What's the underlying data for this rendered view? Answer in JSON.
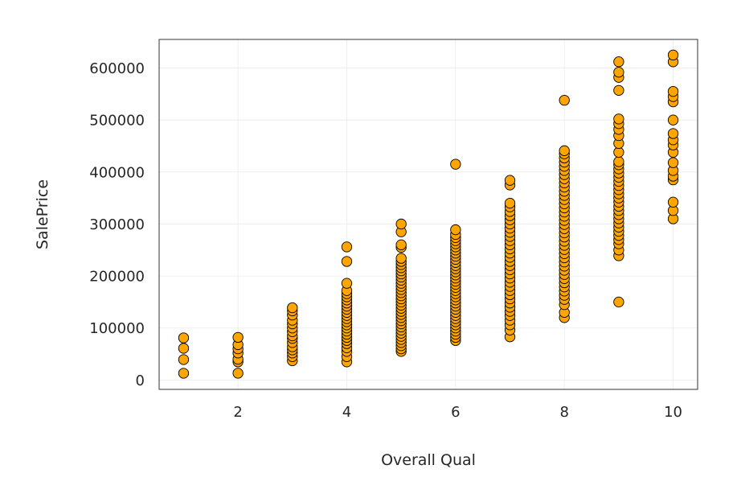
{
  "chart_data": {
    "type": "scatter",
    "title": "",
    "xlabel": "Overall Qual",
    "ylabel": "SalePrice",
    "xlim": [
      0.55,
      10.45
    ],
    "ylim": [
      -18000,
      655000
    ],
    "x_ticks": [
      2,
      4,
      6,
      8,
      10
    ],
    "y_ticks": [
      0,
      100000,
      200000,
      300000,
      400000,
      500000,
      600000
    ],
    "x_tick_labels": [
      "2",
      "4",
      "6",
      "8",
      "10"
    ],
    "y_tick_labels": [
      "0",
      "100000",
      "200000",
      "300000",
      "400000",
      "500000",
      "600000"
    ],
    "grid": true,
    "marker_color": "#FFA500",
    "marker_edge_color": "#000000",
    "series": [
      {
        "points": [
          [
            1,
            13000
          ],
          [
            1,
            39300
          ],
          [
            1,
            61000
          ],
          [
            1,
            81000
          ],
          [
            2,
            13100
          ],
          [
            2,
            35000
          ],
          [
            2,
            40000
          ],
          [
            2,
            52000
          ],
          [
            2,
            60000
          ],
          [
            2,
            68000
          ],
          [
            2,
            82000
          ],
          [
            3,
            37000
          ],
          [
            3,
            45000
          ],
          [
            3,
            52000
          ],
          [
            3,
            58000
          ],
          [
            3,
            64000
          ],
          [
            3,
            72000
          ],
          [
            3,
            80000
          ],
          [
            3,
            85000
          ],
          [
            3,
            93000
          ],
          [
            3,
            100000
          ],
          [
            3,
            108000
          ],
          [
            3,
            115000
          ],
          [
            3,
            125000
          ],
          [
            3,
            133000
          ],
          [
            3,
            139000
          ],
          [
            4,
            34900
          ],
          [
            4,
            45000
          ],
          [
            4,
            55000
          ],
          [
            4,
            62000
          ],
          [
            4,
            70000
          ],
          [
            4,
            76000
          ],
          [
            4,
            82000
          ],
          [
            4,
            88000
          ],
          [
            4,
            94000
          ],
          [
            4,
            100000
          ],
          [
            4,
            106000
          ],
          [
            4,
            112000
          ],
          [
            4,
            118000
          ],
          [
            4,
            124000
          ],
          [
            4,
            130000
          ],
          [
            4,
            136000
          ],
          [
            4,
            142000
          ],
          [
            4,
            148000
          ],
          [
            4,
            154000
          ],
          [
            4,
            160000
          ],
          [
            4,
            166000
          ],
          [
            4,
            172000
          ],
          [
            4,
            186000
          ],
          [
            4,
            228000
          ],
          [
            4,
            256000
          ],
          [
            5,
            55000
          ],
          [
            5,
            60000
          ],
          [
            5,
            66000
          ],
          [
            5,
            72000
          ],
          [
            5,
            78000
          ],
          [
            5,
            84000
          ],
          [
            5,
            90000
          ],
          [
            5,
            96000
          ],
          [
            5,
            102000
          ],
          [
            5,
            108000
          ],
          [
            5,
            114000
          ],
          [
            5,
            120000
          ],
          [
            5,
            126000
          ],
          [
            5,
            132000
          ],
          [
            5,
            138000
          ],
          [
            5,
            144000
          ],
          [
            5,
            150000
          ],
          [
            5,
            156000
          ],
          [
            5,
            162000
          ],
          [
            5,
            168000
          ],
          [
            5,
            174000
          ],
          [
            5,
            180000
          ],
          [
            5,
            186000
          ],
          [
            5,
            192000
          ],
          [
            5,
            198000
          ],
          [
            5,
            204000
          ],
          [
            5,
            210000
          ],
          [
            5,
            216000
          ],
          [
            5,
            222000
          ],
          [
            5,
            228000
          ],
          [
            5,
            234000
          ],
          [
            5,
            255000
          ],
          [
            5,
            260000
          ],
          [
            5,
            285000
          ],
          [
            5,
            300000
          ],
          [
            6,
            76000
          ],
          [
            6,
            82000
          ],
          [
            6,
            88000
          ],
          [
            6,
            94000
          ],
          [
            6,
            100000
          ],
          [
            6,
            106000
          ],
          [
            6,
            112000
          ],
          [
            6,
            118000
          ],
          [
            6,
            124000
          ],
          [
            6,
            130000
          ],
          [
            6,
            136000
          ],
          [
            6,
            142000
          ],
          [
            6,
            148000
          ],
          [
            6,
            154000
          ],
          [
            6,
            160000
          ],
          [
            6,
            166000
          ],
          [
            6,
            172000
          ],
          [
            6,
            178000
          ],
          [
            6,
            184000
          ],
          [
            6,
            190000
          ],
          [
            6,
            196000
          ],
          [
            6,
            202000
          ],
          [
            6,
            208000
          ],
          [
            6,
            214000
          ],
          [
            6,
            220000
          ],
          [
            6,
            226000
          ],
          [
            6,
            232000
          ],
          [
            6,
            238000
          ],
          [
            6,
            244000
          ],
          [
            6,
            250000
          ],
          [
            6,
            256000
          ],
          [
            6,
            262000
          ],
          [
            6,
            268000
          ],
          [
            6,
            274000
          ],
          [
            6,
            280000
          ],
          [
            6,
            289000
          ],
          [
            6,
            415000
          ],
          [
            7,
            83000
          ],
          [
            7,
            96000
          ],
          [
            7,
            106000
          ],
          [
            7,
            115000
          ],
          [
            7,
            124000
          ],
          [
            7,
            132000
          ],
          [
            7,
            140000
          ],
          [
            7,
            148000
          ],
          [
            7,
            156000
          ],
          [
            7,
            164000
          ],
          [
            7,
            172000
          ],
          [
            7,
            180000
          ],
          [
            7,
            188000
          ],
          [
            7,
            196000
          ],
          [
            7,
            204000
          ],
          [
            7,
            212000
          ],
          [
            7,
            220000
          ],
          [
            7,
            228000
          ],
          [
            7,
            236000
          ],
          [
            7,
            244000
          ],
          [
            7,
            252000
          ],
          [
            7,
            260000
          ],
          [
            7,
            268000
          ],
          [
            7,
            276000
          ],
          [
            7,
            284000
          ],
          [
            7,
            292000
          ],
          [
            7,
            300000
          ],
          [
            7,
            308000
          ],
          [
            7,
            316000
          ],
          [
            7,
            324000
          ],
          [
            7,
            333000
          ],
          [
            7,
            340000
          ],
          [
            7,
            375000
          ],
          [
            7,
            384000
          ],
          [
            8,
            120000
          ],
          [
            8,
            130000
          ],
          [
            8,
            145000
          ],
          [
            8,
            155000
          ],
          [
            8,
            163000
          ],
          [
            8,
            171000
          ],
          [
            8,
            179000
          ],
          [
            8,
            187000
          ],
          [
            8,
            195000
          ],
          [
            8,
            203000
          ],
          [
            8,
            211000
          ],
          [
            8,
            219000
          ],
          [
            8,
            227000
          ],
          [
            8,
            235000
          ],
          [
            8,
            243000
          ],
          [
            8,
            251000
          ],
          [
            8,
            259000
          ],
          [
            8,
            267000
          ],
          [
            8,
            275000
          ],
          [
            8,
            283000
          ],
          [
            8,
            291000
          ],
          [
            8,
            299000
          ],
          [
            8,
            307000
          ],
          [
            8,
            315000
          ],
          [
            8,
            323000
          ],
          [
            8,
            331000
          ],
          [
            8,
            339000
          ],
          [
            8,
            347000
          ],
          [
            8,
            355000
          ],
          [
            8,
            363000
          ],
          [
            8,
            371000
          ],
          [
            8,
            379000
          ],
          [
            8,
            387000
          ],
          [
            8,
            395000
          ],
          [
            8,
            403000
          ],
          [
            8,
            411000
          ],
          [
            8,
            419000
          ],
          [
            8,
            427000
          ],
          [
            8,
            435000
          ],
          [
            8,
            441000
          ],
          [
            8,
            538000
          ],
          [
            9,
            150000
          ],
          [
            9,
            239000
          ],
          [
            9,
            250000
          ],
          [
            9,
            262000
          ],
          [
            9,
            270000
          ],
          [
            9,
            278000
          ],
          [
            9,
            286000
          ],
          [
            9,
            294000
          ],
          [
            9,
            302000
          ],
          [
            9,
            310000
          ],
          [
            9,
            318000
          ],
          [
            9,
            326000
          ],
          [
            9,
            334000
          ],
          [
            9,
            342000
          ],
          [
            9,
            350000
          ],
          [
            9,
            358000
          ],
          [
            9,
            366000
          ],
          [
            9,
            374000
          ],
          [
            9,
            382000
          ],
          [
            9,
            390000
          ],
          [
            9,
            398000
          ],
          [
            9,
            406000
          ],
          [
            9,
            414000
          ],
          [
            9,
            420000
          ],
          [
            9,
            438000
          ],
          [
            9,
            455000
          ],
          [
            9,
            470000
          ],
          [
            9,
            482000
          ],
          [
            9,
            493000
          ],
          [
            9,
            502000
          ],
          [
            9,
            557000
          ],
          [
            9,
            582000
          ],
          [
            9,
            592000
          ],
          [
            9,
            612000
          ],
          [
            10,
            310000
          ],
          [
            10,
            326000
          ],
          [
            10,
            342000
          ],
          [
            10,
            385000
          ],
          [
            10,
            392000
          ],
          [
            10,
            403000
          ],
          [
            10,
            418000
          ],
          [
            10,
            438000
          ],
          [
            10,
            452000
          ],
          [
            10,
            462000
          ],
          [
            10,
            474000
          ],
          [
            10,
            500000
          ],
          [
            10,
            535000
          ],
          [
            10,
            545000
          ],
          [
            10,
            555000
          ],
          [
            10,
            612000
          ],
          [
            10,
            625000
          ]
        ]
      }
    ]
  }
}
